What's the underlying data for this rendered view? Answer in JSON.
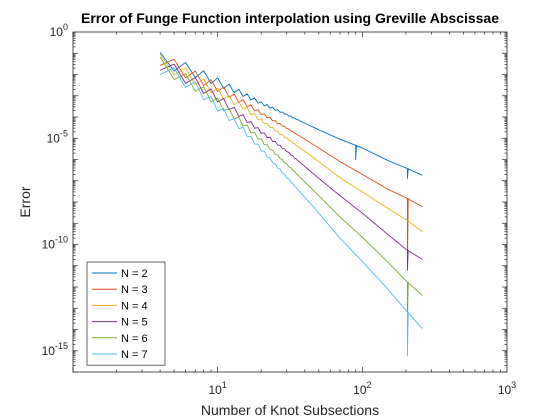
{
  "chart_data": {
    "type": "line",
    "title": "Error of Funge Function interpolation using Greville Abscissae",
    "xlabel": "Number of Knot Subsections",
    "ylabel": "Error",
    "x_scale": "log",
    "y_scale": "log",
    "xlim": [
      1,
      1000
    ],
    "ylim": [
      1e-16,
      1
    ],
    "grid": false,
    "legend_position": "bottom-left",
    "x_ticks": [
      {
        "value": 10,
        "base": "10",
        "exp": "1"
      },
      {
        "value": 100,
        "base": "10",
        "exp": "2"
      },
      {
        "value": 1000,
        "base": "10",
        "exp": "3"
      }
    ],
    "y_ticks": [
      {
        "value": 1,
        "base": "10",
        "exp": "0"
      },
      {
        "value": 1e-05,
        "base": "10",
        "exp": "-5"
      },
      {
        "value": 1e-10,
        "base": "10",
        "exp": "-10"
      },
      {
        "value": 1e-15,
        "base": "10",
        "exp": "-15"
      }
    ],
    "series": [
      {
        "name": "N = 2",
        "color": "#0072BD",
        "points": [
          [
            4,
            0.05
          ],
          [
            5,
            0.03
          ],
          [
            7,
            0.013
          ],
          [
            10,
            0.0045
          ],
          [
            15,
            0.0012
          ],
          [
            20,
            0.00045
          ],
          [
            30,
            0.00013
          ],
          [
            50,
            2.5e-05
          ],
          [
            70,
            9e-06
          ],
          [
            100,
            3.5e-06
          ],
          [
            150,
            9e-07
          ],
          [
            200,
            4e-07
          ],
          [
            260,
            1.8e-07
          ]
        ],
        "spikes": [
          [
            90,
            1e-06
          ],
          [
            205,
            1.3e-07
          ]
        ]
      },
      {
        "name": "N = 3",
        "color": "#D95319",
        "points": [
          [
            4,
            0.06
          ],
          [
            5,
            0.025
          ],
          [
            7,
            0.008
          ],
          [
            10,
            0.0025
          ],
          [
            15,
            0.0005
          ],
          [
            20,
            0.00015
          ],
          [
            30,
            3e-05
          ],
          [
            50,
            3.5e-06
          ],
          [
            70,
            8e-07
          ],
          [
            100,
            2e-07
          ],
          [
            150,
            4e-08
          ],
          [
            200,
            1.6e-08
          ],
          [
            260,
            6e-09
          ]
        ],
        "spikes": [
          [
            205,
            1e-11
          ]
        ]
      },
      {
        "name": "N = 4",
        "color": "#EDB120",
        "points": [
          [
            4,
            0.04
          ],
          [
            5,
            0.02
          ],
          [
            7,
            0.006
          ],
          [
            10,
            0.0015
          ],
          [
            15,
            0.0003
          ],
          [
            20,
            7e-05
          ],
          [
            30,
            1e-05
          ],
          [
            50,
            8e-07
          ],
          [
            70,
            1.4e-07
          ],
          [
            100,
            3e-08
          ],
          [
            150,
            5e-09
          ],
          [
            200,
            1.5e-09
          ],
          [
            260,
            4e-10
          ]
        ],
        "spikes": []
      },
      {
        "name": "N = 5",
        "color": "#7E2F8E",
        "points": [
          [
            4,
            0.035
          ],
          [
            5,
            0.015
          ],
          [
            7,
            0.004
          ],
          [
            10,
            0.0008
          ],
          [
            15,
            0.0001
          ],
          [
            20,
            2e-05
          ],
          [
            30,
            2.5e-06
          ],
          [
            50,
            1.3e-07
          ],
          [
            70,
            2e-08
          ],
          [
            100,
            3e-09
          ],
          [
            150,
            3e-10
          ],
          [
            200,
            6e-11
          ],
          [
            260,
            2e-11
          ]
        ],
        "spikes": [
          [
            205,
            6e-12
          ]
        ]
      },
      {
        "name": "N = 6",
        "color": "#77AC30",
        "points": [
          [
            4,
            0.03
          ],
          [
            5,
            0.012
          ],
          [
            7,
            0.003
          ],
          [
            10,
            0.0005
          ],
          [
            15,
            5e-05
          ],
          [
            20,
            8e-06
          ],
          [
            30,
            6e-07
          ],
          [
            50,
            2e-08
          ],
          [
            70,
            2e-09
          ],
          [
            100,
            2.2e-10
          ],
          [
            150,
            1.5e-11
          ],
          [
            200,
            2e-12
          ],
          [
            260,
            4e-13
          ]
        ],
        "spikes": [
          [
            205,
            2e-14
          ]
        ]
      },
      {
        "name": "N = 7",
        "color": "#4DBEEE",
        "points": [
          [
            4,
            0.022
          ],
          [
            5,
            0.01
          ],
          [
            7,
            0.0025
          ],
          [
            10,
            0.0003
          ],
          [
            15,
            2.5e-05
          ],
          [
            20,
            3e-06
          ],
          [
            30,
            1.5e-07
          ],
          [
            50,
            3e-09
          ],
          [
            70,
            2e-10
          ],
          [
            100,
            1.6e-11
          ],
          [
            150,
            8e-13
          ],
          [
            200,
            8e-14
          ],
          [
            260,
            1.1e-14
          ]
        ],
        "spikes": [
          [
            205,
            6e-16
          ]
        ]
      }
    ]
  }
}
